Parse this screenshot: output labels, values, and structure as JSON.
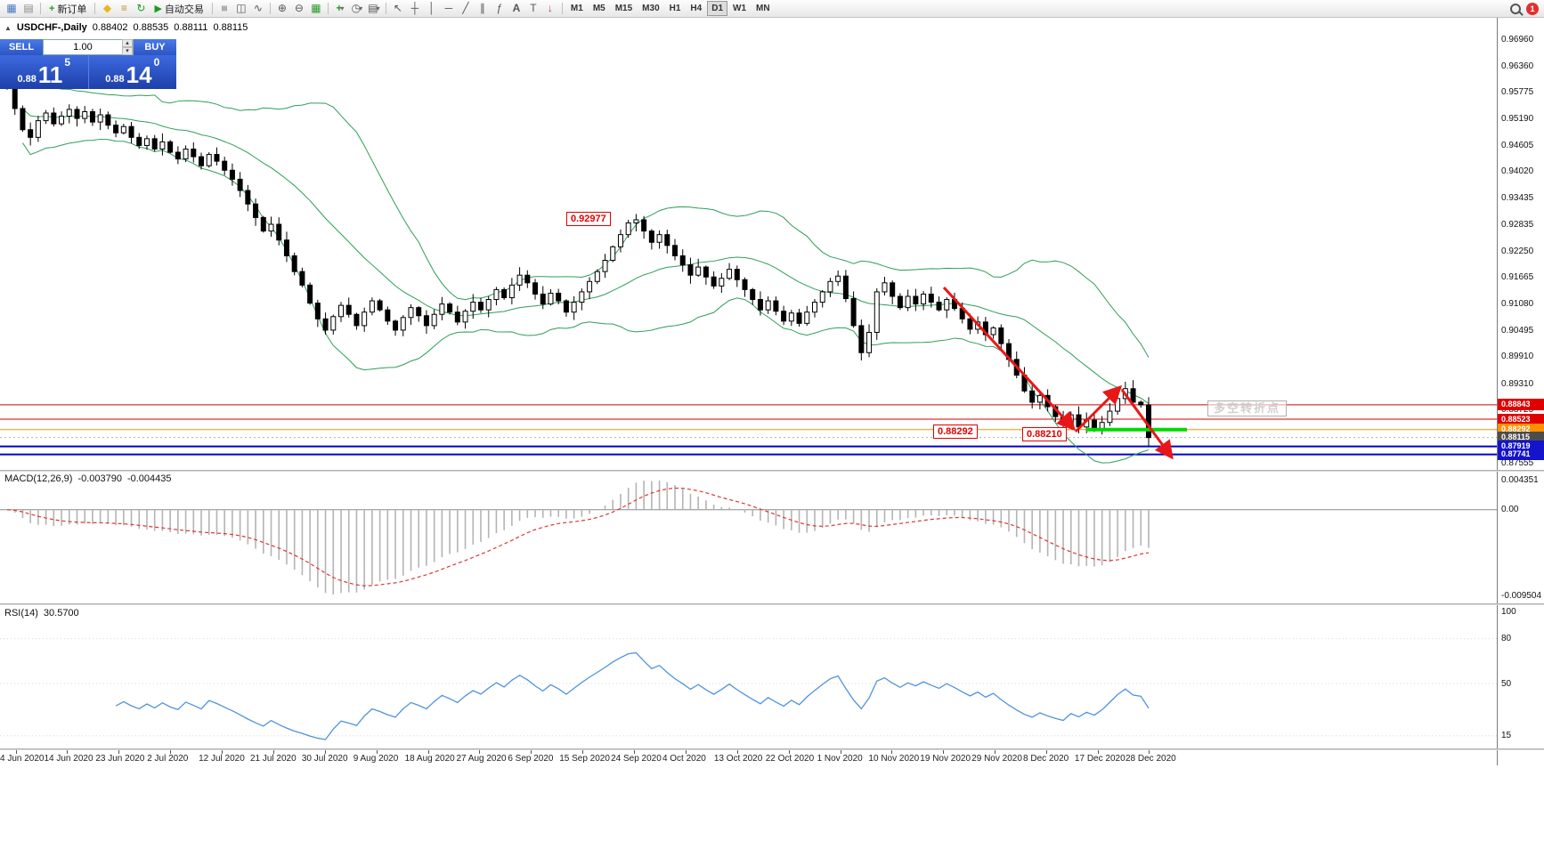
{
  "toolbar": {
    "new_order_label": "新订单",
    "auto_trading_label": "自动交易",
    "timeframes": [
      "M1",
      "M5",
      "M15",
      "M30",
      "H1",
      "H4",
      "D1",
      "W1",
      "MN"
    ],
    "active_timeframe": "D1",
    "notification_count": "1"
  },
  "chart_header": {
    "symbol": "USDCHF-,Daily",
    "open": "0.88402",
    "high": "0.88535",
    "low": "0.88111",
    "close": "0.88115"
  },
  "trade_panel": {
    "sell_label": "SELL",
    "buy_label": "BUY",
    "volume": "1.00",
    "sell_price_base": "0.88",
    "sell_price_big": "11",
    "sell_price_sup": "5",
    "buy_price_base": "0.88",
    "buy_price_big": "14",
    "buy_price_sup": "0"
  },
  "annotations": {
    "peak_price_label": "0.92977",
    "support_price_label": "0.88292",
    "low_price_label": "0.88210",
    "turning_point_label": "多空转折点"
  },
  "price_axis": {
    "labels": [
      "0.96960",
      "0.96360",
      "0.95775",
      "0.95190",
      "0.94605",
      "0.94020",
      "0.93435",
      "0.92835",
      "0.92250",
      "0.91665",
      "0.91080",
      "0.90495",
      "0.89910",
      "0.89310",
      "0.88725",
      "0.88140",
      "0.87555"
    ],
    "tags": [
      {
        "text": "0.88843",
        "price": 0.88843,
        "color": "#e00000"
      },
      {
        "text": "0.88523",
        "price": 0.88523,
        "color": "#e00000"
      },
      {
        "text": "0.88292",
        "price": 0.88292,
        "color": "#ff9000"
      },
      {
        "text": "0.88115",
        "price": 0.88115,
        "color": "#4d4d4d"
      },
      {
        "text": "0.87919",
        "price": 0.87919,
        "color": "#1414cc"
      },
      {
        "text": "0.87741",
        "price": 0.87741,
        "color": "#1414cc"
      }
    ]
  },
  "hlines": [
    {
      "price": 0.88843,
      "color": "#d40000",
      "width": 1
    },
    {
      "price": 0.88523,
      "color": "#d40000",
      "width": 1
    },
    {
      "price": 0.88292,
      "color": "#ff9000",
      "width": 1
    },
    {
      "price": 0.87919,
      "color": "#0000cc",
      "width": 2
    },
    {
      "price": 0.87741,
      "color": "#0000cc",
      "width": 2
    }
  ],
  "colors": {
    "bollinger": "#2f9e59",
    "bull_body": "#ffffff",
    "bear_body": "#000000",
    "candle_outline": "#000000",
    "macd_histogram": "#b4b4b4",
    "macd_signal": "#e03333",
    "rsi_line": "#4f93dd",
    "trend_arrow": "#e81717",
    "support_segment": "#00d800"
  },
  "chart_data": {
    "type": "candlestick",
    "symbol": "USDCHF",
    "timeframe": "Daily",
    "price_axis_top": 0.9696,
    "price_axis_bottom": 0.87555,
    "first_open": 0.961,
    "closes": [
      0.9588,
      0.9542,
      0.9495,
      0.9478,
      0.9515,
      0.9532,
      0.9508,
      0.9525,
      0.954,
      0.952,
      0.9535,
      0.9512,
      0.9528,
      0.9505,
      0.9488,
      0.9502,
      0.9478,
      0.946,
      0.9475,
      0.9452,
      0.9468,
      0.9445,
      0.943,
      0.9452,
      0.9435,
      0.9415,
      0.944,
      0.9425,
      0.9405,
      0.9385,
      0.936,
      0.933,
      0.93,
      0.927,
      0.9285,
      0.925,
      0.9215,
      0.918,
      0.915,
      0.911,
      0.9075,
      0.905,
      0.908,
      0.9105,
      0.9085,
      0.906,
      0.909,
      0.9115,
      0.9095,
      0.907,
      0.905,
      0.9078,
      0.91,
      0.9082,
      0.906,
      0.9085,
      0.9108,
      0.909,
      0.9068,
      0.9092,
      0.9112,
      0.9095,
      0.9118,
      0.914,
      0.9122,
      0.915,
      0.9172,
      0.9155,
      0.913,
      0.9108,
      0.9132,
      0.9115,
      0.909,
      0.9112,
      0.9135,
      0.9158,
      0.918,
      0.9205,
      0.9235,
      0.9262,
      0.9288,
      0.9295,
      0.927,
      0.9245,
      0.9262,
      0.9238,
      0.9215,
      0.9195,
      0.9172,
      0.919,
      0.9168,
      0.9148,
      0.9165,
      0.9185,
      0.9162,
      0.914,
      0.9118,
      0.9095,
      0.9115,
      0.9092,
      0.907,
      0.9088,
      0.9065,
      0.909,
      0.9112,
      0.9135,
      0.9158,
      0.917,
      0.912,
      0.906,
      0.9,
      0.9045,
      0.9135,
      0.9155,
      0.9125,
      0.91,
      0.9125,
      0.9108,
      0.913,
      0.9112,
      0.9095,
      0.9118,
      0.9098,
      0.9075,
      0.9052,
      0.9068,
      0.904,
      0.9055,
      0.902,
      0.8985,
      0.895,
      0.8915,
      0.889,
      0.8905,
      0.888,
      0.8858,
      0.884,
      0.8862,
      0.8835,
      0.885,
      0.8828,
      0.8845,
      0.887,
      0.8898,
      0.892,
      0.889,
      0.8884,
      0.88115
    ],
    "dates": [
      "4 Jun 2020",
      "14 Jun 2020",
      "23 Jun 2020",
      "2 Jul 2020",
      "12 Jul 2020",
      "21 Jul 2020",
      "30 Jul 2020",
      "9 Aug 2020",
      "18 Aug 2020",
      "27 Aug 2020",
      "6 Sep 2020",
      "15 Sep 2020",
      "24 Sep 2020",
      "4 Oct 2020",
      "13 Oct 2020",
      "22 Oct 2020",
      "1 Nov 2020",
      "10 Nov 2020",
      "19 Nov 2020",
      "29 Nov 2020",
      "8 Dec 2020",
      "17 Dec 2020",
      "28 Dec 2020"
    ],
    "bollinger": {
      "period": 20,
      "deviation": 2
    },
    "macd": {
      "label": "MACD(12,26,9)",
      "main_value": "-0.003790",
      "signal_value": "-0.004435",
      "axis": [
        "0.004351",
        "0.00",
        "-0.009504"
      ]
    },
    "rsi": {
      "label": "RSI(14)",
      "value": "30.5700",
      "axis": [
        100,
        80,
        50,
        15
      ]
    }
  }
}
